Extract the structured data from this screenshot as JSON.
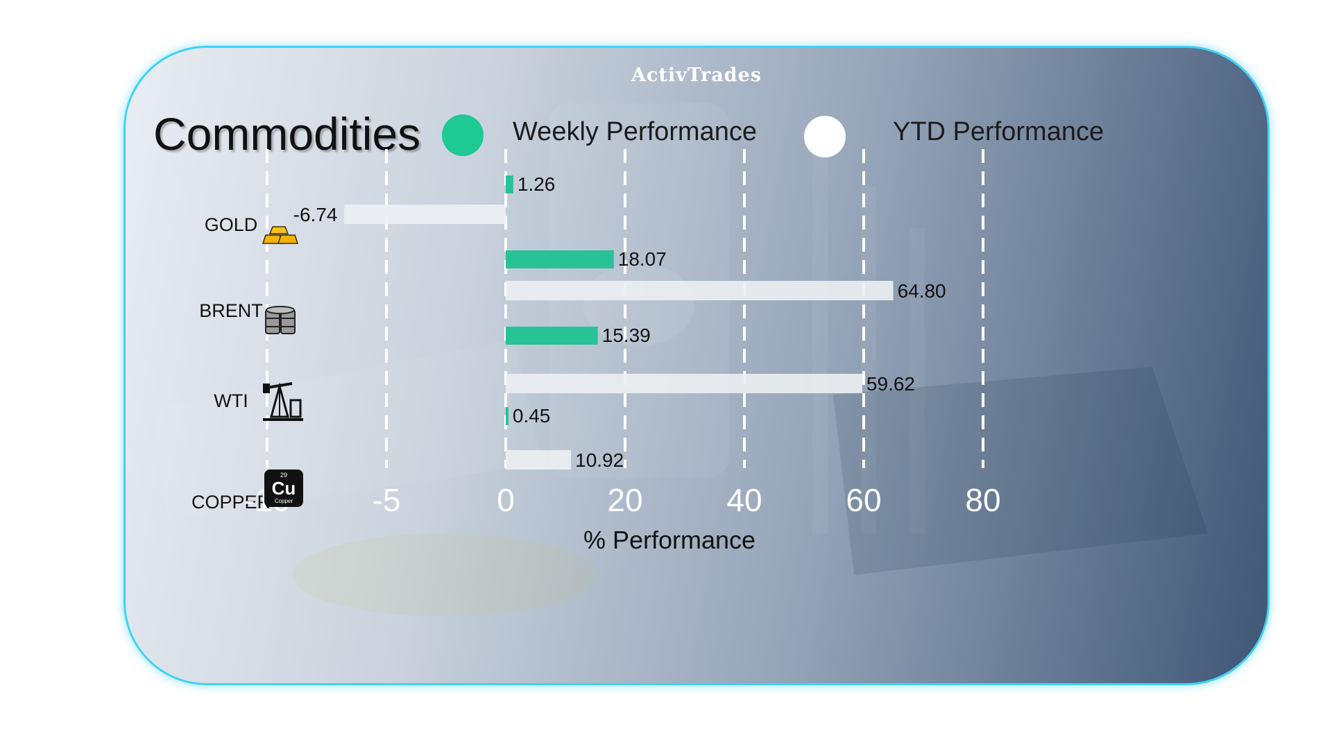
{
  "brand": {
    "logo_text": "ActivTrades"
  },
  "header": {
    "title": "Commodities"
  },
  "legend": [
    {
      "label": "Weekly Performance",
      "color": "#1ec993"
    },
    {
      "label": "YTD Performance",
      "color": "#ffffff"
    }
  ],
  "commodities": [
    {
      "name": "GOLD",
      "icon": "gold-bars-icon"
    },
    {
      "name": "BRENT",
      "icon": "oil-barrels-icon"
    },
    {
      "name": "WTI",
      "icon": "oil-pump-icon"
    },
    {
      "name": "COPPER",
      "icon": "copper-element-icon",
      "icon_number": "29",
      "icon_symbol": "Cu",
      "icon_caption": "Copper"
    }
  ],
  "chart_data": {
    "type": "bar",
    "orientation": "horizontal",
    "categories": [
      "GOLD",
      "BRENT",
      "WTI",
      "COPPER"
    ],
    "series": [
      {
        "name": "Weekly Performance",
        "values": [
          1.26,
          18.07,
          15.39,
          0.45
        ],
        "labels": [
          "1.26",
          "18.07",
          "15.39",
          "0.45"
        ],
        "color": "#27c295"
      },
      {
        "name": "YTD Performance",
        "values": [
          -6.74,
          64.8,
          59.62,
          10.92
        ],
        "labels": [
          "-6.74",
          "64.80",
          "59.62",
          "10.92"
        ],
        "color": "#eceff3"
      }
    ],
    "x_ticks": [
      "-10",
      "-5",
      "0",
      "20",
      "40",
      "60",
      "80"
    ],
    "x_scale_note": "piecewise",
    "xlabel": "% Performance",
    "grid": true
  }
}
